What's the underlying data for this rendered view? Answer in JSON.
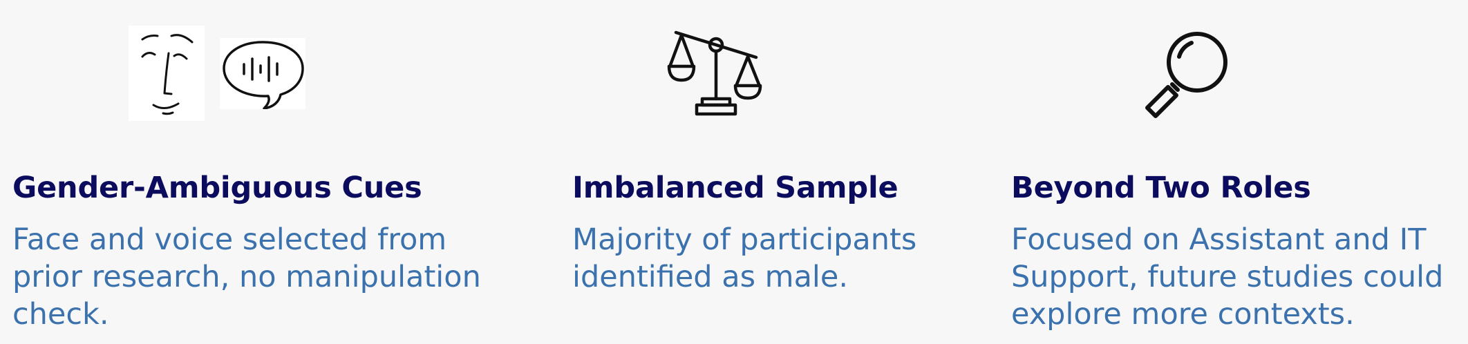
{
  "items": [
    {
      "title": "Gender-Ambiguous Cues",
      "description": "Face and voice selected from prior research, no manipulation check.",
      "icons": [
        "face-icon",
        "speech-bubble-icon"
      ]
    },
    {
      "title": "Imbalanced Sample",
      "description": "Majority of participants identified as male.",
      "icons": [
        "balance-scale-icon"
      ]
    },
    {
      "title": "Beyond Two Roles",
      "description": "Focused on Assistant and IT Support, future studies could explore more contexts.",
      "icons": [
        "magnifying-glass-icon"
      ]
    }
  ],
  "colors": {
    "background": "#f7f7f7",
    "heading": "#0c0c5e",
    "body": "#3b72ad",
    "icon_stroke": "#111111"
  }
}
